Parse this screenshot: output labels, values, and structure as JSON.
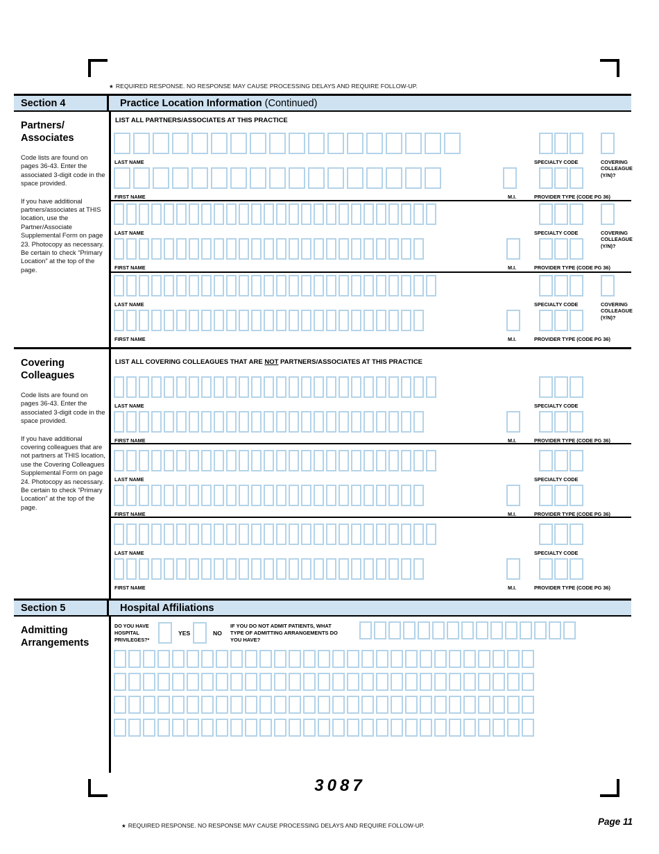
{
  "required_note": {
    "star": "★",
    "text": "REQUIRED RESPONSE. NO RESPONSE MAY CAUSE PROCESSING DELAYS AND REQUIRE FOLLOW-UP."
  },
  "section4": {
    "id": "Section 4",
    "title": "Practice Location Information",
    "suffix": "(Continued)",
    "list_heading": "LIST ALL PARTNERS/ASSOCIATES AT THIS PRACTICE",
    "sidebar": {
      "heading_l1": "Partners/",
      "heading_l2": "Associates",
      "para1": "Code lists are found on pages 36-43. Enter the associated 3-digit code in the space provided.",
      "para2": "If you have additional partners/associates at THIS location, use the Partner/Associate Supplemental Form on page 23. Photocopy as necessary. Be certain to check “Primary Location” at the top of the page."
    }
  },
  "covering": {
    "list_heading_pre": "LIST ALL COVERING COLLEAGUES THAT ARE ",
    "list_heading_not": "NOT",
    "list_heading_post": " PARTNERS/ASSOCIATES AT THIS PRACTICE",
    "sidebar": {
      "heading_l1": "Covering",
      "heading_l2": "Colleagues",
      "para1": "Code lists are found on pages 36-43. Enter the associated 3-digit code in the space provided.",
      "para2": "If you have additional covering colleagues that are not partners at THIS location, use the Covering Colleagues Supplemental Form on page 24. Photocopy as necessary. Be certain to check “Primary Location” at the top of the page."
    }
  },
  "labels": {
    "last_name": "LAST NAME",
    "first_name": "FIRST NAME",
    "mi": "M.I.",
    "specialty_code": "SPECIALTY CODE",
    "covering_l1": "COVERING",
    "covering_l2": "COLLEAGUE",
    "covering_l3": "(Y/N)?",
    "provider_type": "PROVIDER TYPE (CODE PG 36)"
  },
  "section5": {
    "id": "Section 5",
    "title": "Hospital Affiliations",
    "sidebar": {
      "heading_l1": "Admitting",
      "heading_l2": "Arrangements"
    },
    "q_privileges_l1": "DO YOU HAVE",
    "q_privileges_l2": "HOSPITAL",
    "q_privileges_l3": "PRIVILEGES?*",
    "yes": "YES",
    "no": "NO",
    "q_admit_l1": "IF YOU DO NOT ADMIT PATIENTS, WHAT",
    "q_admit_l2": "TYPE OF ADMITTING ARRANGEMENTS DO",
    "q_admit_l3": "YOU HAVE?"
  },
  "footer": {
    "form_number": "3087",
    "page": "Page 11"
  },
  "colors": {
    "bar": "#cfe2f1",
    "boxb": "#b3d3e9",
    "ink": "#000000"
  }
}
